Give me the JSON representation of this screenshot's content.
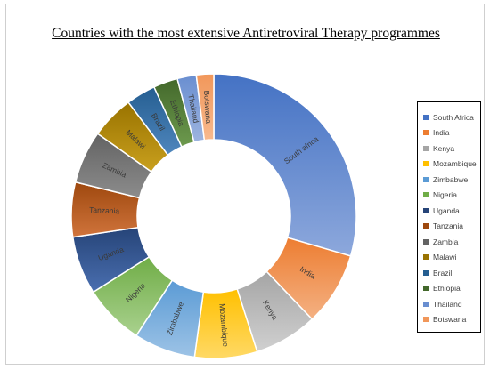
{
  "chart_data": {
    "type": "pie",
    "title": "Countries with the most extensive Antiretroviral Therapy programmes",
    "donut": true,
    "legend_position": "right",
    "categories": [
      "South africa",
      "India",
      "Kenya",
      "Mozambique",
      "Zimbabwe",
      "Nigeria",
      "Uganda",
      "Tanzania",
      "Zambia",
      "Malawi",
      "Brazil",
      "Ethiopia",
      "Thailand",
      "Botswana"
    ],
    "legend_labels": [
      "South Africa",
      "India",
      "Kenya",
      "Mozambique",
      "Zimbabwe",
      "Nigeria",
      "Uganda",
      "Tanzania",
      "Zambia",
      "Malawi",
      "Brazil",
      "Ethiopia",
      "Thailand",
      "Botswana"
    ],
    "values": [
      30.0,
      8.5,
      7.3,
      7.2,
      7.1,
      7.0,
      6.7,
      6.3,
      6.1,
      5.0,
      3.4,
      2.8,
      2.2,
      2.0
    ],
    "colors": [
      "#4472C4",
      "#ED7D31",
      "#A5A5A5",
      "#FFC000",
      "#5B9BD5",
      "#70AD47",
      "#264478",
      "#9E480E",
      "#636363",
      "#997300",
      "#255E91",
      "#43682B",
      "#698ED0",
      "#F1975A"
    ],
    "gradient_light": [
      "#8DA8DC",
      "#F4B183",
      "#D0D0D0",
      "#FFD966",
      "#9DC3E6",
      "#A9D18E",
      "#4A6FB0",
      "#D0743C",
      "#8C8C8C",
      "#C9A01E",
      "#4F86BD",
      "#6D9A4E",
      "#9DB4E0",
      "#F8B98E"
    ]
  }
}
